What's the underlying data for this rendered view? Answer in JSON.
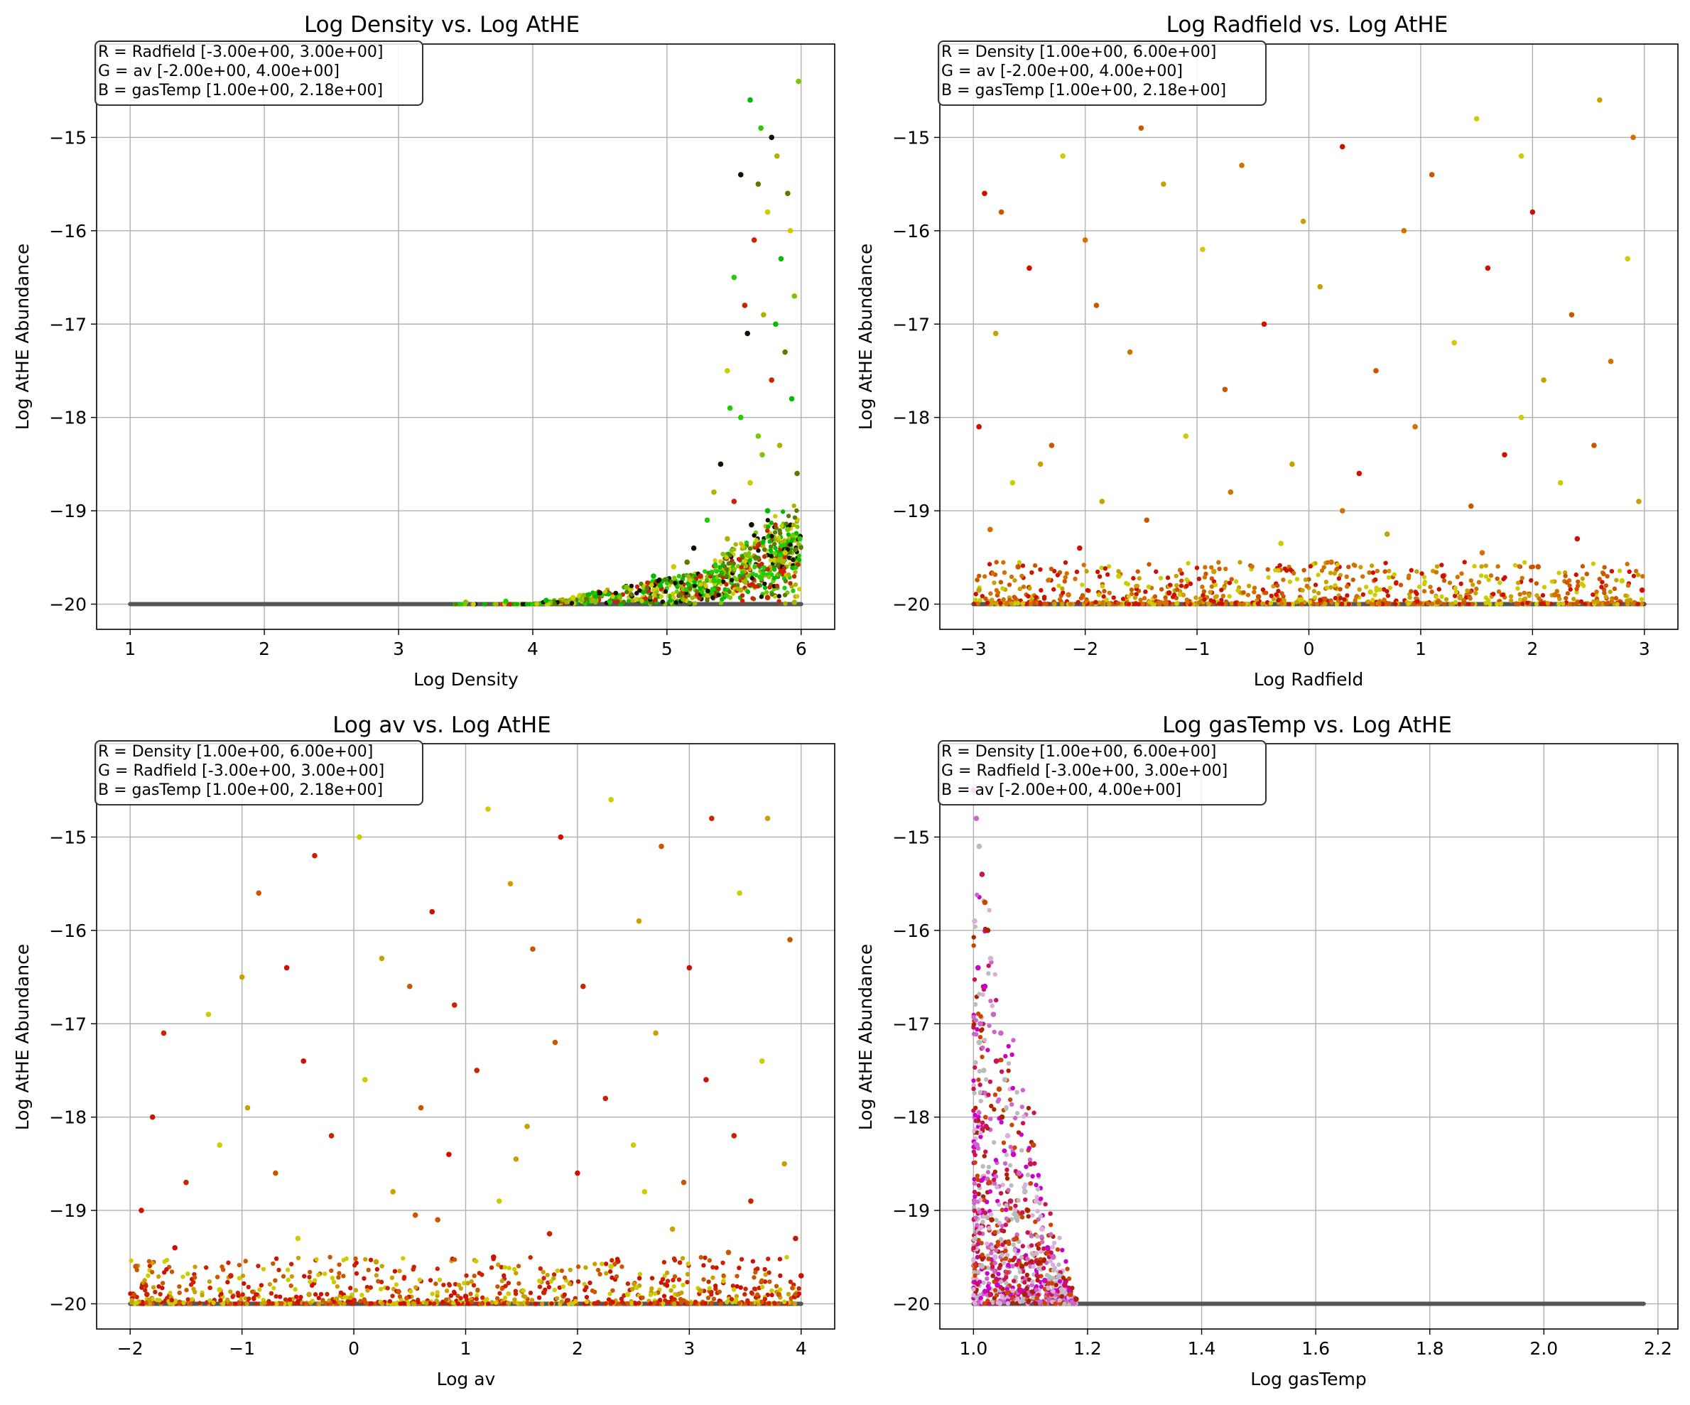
{
  "chart_data": [
    {
      "type": "scatter",
      "title": "Log Density vs. Log AtHE",
      "xlabel": "Log Density",
      "ylabel": "Log AtHE Abundance",
      "xlim": [
        0.75,
        6.25
      ],
      "ylim": [
        -20.27,
        -14.0
      ],
      "xticks": [
        1,
        2,
        3,
        4,
        5,
        6
      ],
      "xtick_labels": [
        "1",
        "2",
        "3",
        "4",
        "5",
        "6"
      ],
      "yticks": [
        -20,
        -19,
        -18,
        -17,
        -16,
        -15
      ],
      "ytick_labels": [
        "−20",
        "−19",
        "−18",
        "−17",
        "−16",
        "−15"
      ],
      "grid": true,
      "legend_position": "top-left",
      "legend": [
        "R = Radfield [-3.00e+00, 3.00e+00]",
        "G = av [-2.00e+00, 4.00e+00]",
        "B = gasTemp [1.00e+00, 2.18e+00]"
      ],
      "baseline_color": "#555555",
      "colors": [
        "#00bb00",
        "#22cc00",
        "#7ac800",
        "#b0b000",
        "#111100",
        "#5a7a00",
        "#cccc00",
        "#cc2200"
      ],
      "points": [
        [
          5.62,
          -14.6
        ],
        [
          5.7,
          -14.9
        ],
        [
          5.98,
          -14.4
        ],
        [
          5.82,
          -15.2
        ],
        [
          5.55,
          -15.4
        ],
        [
          5.9,
          -15.6
        ],
        [
          5.75,
          -15.8
        ],
        [
          5.65,
          -16.1
        ],
        [
          5.85,
          -16.3
        ],
        [
          5.5,
          -16.5
        ],
        [
          5.95,
          -16.7
        ],
        [
          5.72,
          -16.9
        ],
        [
          5.6,
          -17.1
        ],
        [
          5.88,
          -17.3
        ],
        [
          5.45,
          -17.5
        ],
        [
          5.78,
          -17.6
        ],
        [
          5.93,
          -17.8
        ],
        [
          5.55,
          -18.0
        ],
        [
          5.68,
          -18.2
        ],
        [
          5.84,
          -18.3
        ],
        [
          5.4,
          -18.5
        ],
        [
          5.97,
          -18.6
        ],
        [
          5.62,
          -18.7
        ],
        [
          5.5,
          -18.9
        ],
        [
          5.75,
          -19.0
        ],
        [
          5.3,
          -19.1
        ],
        [
          5.9,
          -19.2
        ],
        [
          5.45,
          -19.3
        ],
        [
          5.2,
          -19.4
        ],
        [
          5.66,
          -19.5
        ],
        [
          5.05,
          -19.6
        ],
        [
          5.85,
          -19.65
        ],
        [
          4.9,
          -19.7
        ],
        [
          5.35,
          -19.75
        ],
        [
          4.7,
          -19.82
        ],
        [
          5.55,
          -19.85
        ],
        [
          4.5,
          -19.88
        ],
        [
          5.1,
          -19.9
        ],
        [
          4.3,
          -19.93
        ],
        [
          5.75,
          -19.93
        ],
        [
          4.1,
          -19.96
        ],
        [
          3.8,
          -19.97
        ],
        [
          3.5,
          -19.98
        ],
        [
          5.95,
          -19.98
        ],
        [
          5.78,
          -15.0
        ],
        [
          5.68,
          -15.5
        ],
        [
          5.92,
          -16.0
        ],
        [
          5.58,
          -16.8
        ],
        [
          5.81,
          -17.0
        ],
        [
          5.47,
          -17.9
        ],
        [
          5.71,
          -18.4
        ],
        [
          5.35,
          -18.8
        ],
        [
          5.63,
          -19.15
        ],
        [
          5.15,
          -19.55
        ],
        [
          5.88,
          -19.45
        ],
        [
          5.25,
          -19.7
        ],
        [
          4.95,
          -19.8
        ],
        [
          5.99,
          -19.3
        ]
      ]
    },
    {
      "type": "scatter",
      "title": "Log Radfield vs. Log AtHE",
      "xlabel": "Log Radfield",
      "ylabel": "Log AtHE Abundance",
      "xlim": [
        -3.3,
        3.3
      ],
      "ylim": [
        -20.27,
        -14.0
      ],
      "xticks": [
        -3,
        -2,
        -1,
        0,
        1,
        2,
        3
      ],
      "xtick_labels": [
        "−3",
        "−2",
        "−1",
        "0",
        "1",
        "2",
        "3"
      ],
      "yticks": [
        -20,
        -19,
        -18,
        -17,
        -16,
        -15
      ],
      "ytick_labels": [
        "−20",
        "−19",
        "−18",
        "−17",
        "−16",
        "−15"
      ],
      "grid": true,
      "legend_position": "top-left",
      "legend": [
        "R = Density [1.00e+00, 6.00e+00]",
        "G = av [-2.00e+00, 4.00e+00]",
        "B = gasTemp [1.00e+00, 2.18e+00]"
      ],
      "baseline_color": "#555555",
      "colors": [
        "#cc1100",
        "#cc5500",
        "#cccc00",
        "#c8a000",
        "#d27000"
      ],
      "points": [
        [
          -2.9,
          -15.6
        ],
        [
          -2.75,
          -15.8
        ],
        [
          -2.2,
          -15.2
        ],
        [
          -1.3,
          -15.5
        ],
        [
          -0.6,
          -15.3
        ],
        [
          0.3,
          -15.1
        ],
        [
          1.1,
          -15.4
        ],
        [
          1.9,
          -15.2
        ],
        [
          2.6,
          -14.6
        ],
        [
          2.9,
          -15.0
        ],
        [
          -2.5,
          -16.4
        ],
        [
          -1.9,
          -16.8
        ],
        [
          -0.95,
          -16.2
        ],
        [
          0.1,
          -16.6
        ],
        [
          0.85,
          -16.0
        ],
        [
          1.6,
          -16.4
        ],
        [
          2.35,
          -16.9
        ],
        [
          2.85,
          -16.3
        ],
        [
          -2.8,
          -17.1
        ],
        [
          -1.6,
          -17.3
        ],
        [
          -0.4,
          -17.0
        ],
        [
          0.6,
          -17.5
        ],
        [
          1.3,
          -17.2
        ],
        [
          2.1,
          -17.6
        ],
        [
          2.7,
          -17.4
        ],
        [
          -2.95,
          -18.1
        ],
        [
          -2.3,
          -18.3
        ],
        [
          -1.1,
          -18.2
        ],
        [
          -0.15,
          -18.5
        ],
        [
          0.95,
          -18.1
        ],
        [
          1.75,
          -18.4
        ],
        [
          2.55,
          -18.3
        ],
        [
          -2.65,
          -18.7
        ],
        [
          -1.85,
          -18.9
        ],
        [
          -0.7,
          -18.8
        ],
        [
          0.45,
          -18.6
        ],
        [
          1.45,
          -18.95
        ],
        [
          2.25,
          -18.7
        ],
        [
          2.95,
          -18.9
        ],
        [
          -2.85,
          -19.2
        ],
        [
          -2.05,
          -19.4
        ],
        [
          -1.45,
          -19.1
        ],
        [
          -0.25,
          -19.35
        ],
        [
          0.7,
          -19.25
        ],
        [
          1.55,
          -19.45
        ],
        [
          2.4,
          -19.3
        ],
        [
          -2.6,
          -19.6
        ],
        [
          -1.7,
          -19.7
        ],
        [
          -0.85,
          -19.65
        ],
        [
          0.2,
          -19.55
        ],
        [
          1.2,
          -19.7
        ],
        [
          2.05,
          -19.6
        ],
        [
          2.8,
          -19.75
        ],
        [
          -2.95,
          -19.85
        ],
        [
          -2.15,
          -19.9
        ],
        [
          -1.25,
          -19.88
        ],
        [
          -0.45,
          -19.92
        ],
        [
          0.55,
          -19.87
        ],
        [
          1.35,
          -19.93
        ],
        [
          2.2,
          -19.9
        ],
        [
          2.98,
          -19.85
        ],
        [
          -1.5,
          -14.9
        ],
        [
          1.5,
          -14.8
        ],
        [
          -0.05,
          -15.9
        ],
        [
          -2.0,
          -16.1
        ],
        [
          2.0,
          -15.8
        ],
        [
          -0.75,
          -17.7
        ],
        [
          1.9,
          -18.0
        ],
        [
          -2.4,
          -18.5
        ],
        [
          0.3,
          -19.0
        ]
      ]
    },
    {
      "type": "scatter",
      "title": "Log av vs. Log AtHE",
      "xlabel": "Log av",
      "ylabel": "Log AtHE Abundance",
      "xlim": [
        -2.3,
        4.3
      ],
      "ylim": [
        -20.27,
        -14.0
      ],
      "xticks": [
        -2,
        -1,
        0,
        1,
        2,
        3,
        4
      ],
      "xtick_labels": [
        "−2",
        "−1",
        "0",
        "1",
        "2",
        "3",
        "4"
      ],
      "yticks": [
        -20,
        -19,
        -18,
        -17,
        -16,
        -15
      ],
      "ytick_labels": [
        "−20",
        "−19",
        "−18",
        "−17",
        "−16",
        "−15"
      ],
      "grid": true,
      "legend_position": "top-left",
      "legend": [
        "R = Density [1.00e+00, 6.00e+00]",
        "G = Radfield [-3.00e+00, 3.00e+00]",
        "B = gasTemp [1.00e+00, 2.18e+00]"
      ],
      "baseline_color": "#555555",
      "colors": [
        "#cc1100",
        "#cc2200",
        "#cccc00",
        "#c8a000",
        "#cc5500"
      ],
      "points": [
        [
          -1.9,
          -19.0
        ],
        [
          -1.7,
          -17.1
        ],
        [
          -1.3,
          -16.9
        ],
        [
          -1.0,
          -16.5
        ],
        [
          -0.85,
          -15.6
        ],
        [
          -0.6,
          -16.4
        ],
        [
          -0.35,
          -15.2
        ],
        [
          0.05,
          -15.0
        ],
        [
          0.25,
          -16.3
        ],
        [
          0.5,
          -16.6
        ],
        [
          0.7,
          -15.8
        ],
        [
          0.9,
          -16.8
        ],
        [
          1.2,
          -14.7
        ],
        [
          1.4,
          -15.5
        ],
        [
          1.6,
          -16.2
        ],
        [
          1.85,
          -15.0
        ],
        [
          2.05,
          -16.6
        ],
        [
          2.3,
          -14.6
        ],
        [
          2.55,
          -15.9
        ],
        [
          2.75,
          -15.1
        ],
        [
          3.0,
          -16.4
        ],
        [
          3.2,
          -14.8
        ],
        [
          3.45,
          -15.6
        ],
        [
          3.7,
          -14.8
        ],
        [
          3.9,
          -16.1
        ],
        [
          -1.8,
          -18.0
        ],
        [
          -1.5,
          -18.7
        ],
        [
          -1.2,
          -18.3
        ],
        [
          -0.95,
          -17.9
        ],
        [
          -0.7,
          -18.6
        ],
        [
          -0.45,
          -17.4
        ],
        [
          -0.2,
          -18.2
        ],
        [
          0.1,
          -17.6
        ],
        [
          0.35,
          -18.8
        ],
        [
          0.6,
          -17.9
        ],
        [
          0.85,
          -18.4
        ],
        [
          1.1,
          -17.5
        ],
        [
          1.3,
          -18.9
        ],
        [
          1.55,
          -18.1
        ],
        [
          1.8,
          -17.2
        ],
        [
          2.0,
          -18.6
        ],
        [
          2.25,
          -17.8
        ],
        [
          2.5,
          -18.3
        ],
        [
          2.7,
          -17.1
        ],
        [
          2.95,
          -18.7
        ],
        [
          3.15,
          -17.6
        ],
        [
          3.4,
          -18.2
        ],
        [
          3.65,
          -17.4
        ],
        [
          3.85,
          -18.5
        ],
        [
          -1.95,
          -19.6
        ],
        [
          -1.6,
          -19.4
        ],
        [
          -1.1,
          -19.7
        ],
        [
          -0.5,
          -19.3
        ],
        [
          0.2,
          -19.55
        ],
        [
          0.75,
          -19.1
        ],
        [
          1.25,
          -19.5
        ],
        [
          1.75,
          -19.25
        ],
        [
          2.3,
          -19.6
        ],
        [
          2.85,
          -19.2
        ],
        [
          3.35,
          -19.45
        ],
        [
          3.95,
          -19.3
        ],
        [
          -1.85,
          -19.9
        ],
        [
          -1.2,
          -19.85
        ],
        [
          -0.4,
          -19.9
        ],
        [
          0.4,
          -19.87
        ],
        [
          1.0,
          -19.92
        ],
        [
          1.7,
          -19.88
        ],
        [
          2.45,
          -19.9
        ],
        [
          3.1,
          -19.86
        ],
        [
          3.8,
          -19.9
        ],
        [
          4.0,
          -19.7
        ],
        [
          3.55,
          -18.9
        ],
        [
          2.6,
          -18.8
        ],
        [
          1.45,
          -18.45
        ],
        [
          0.55,
          -19.05
        ]
      ]
    },
    {
      "type": "scatter",
      "title": "Log gasTemp vs. Log AtHE",
      "xlabel": "Log gasTemp",
      "ylabel": "Log AtHE Abundance",
      "xlim": [
        0.941,
        2.235
      ],
      "ylim": [
        -20.27,
        -14.0
      ],
      "xticks": [
        1.0,
        1.2,
        1.4,
        1.6,
        1.8,
        2.0,
        2.2
      ],
      "xtick_labels": [
        "1.0",
        "1.2",
        "1.4",
        "1.6",
        "1.8",
        "2.0",
        "2.2"
      ],
      "yticks": [
        -20,
        -19,
        -18,
        -17,
        -16,
        -15
      ],
      "ytick_labels": [
        "−20",
        "−19",
        "−18",
        "−17",
        "−16",
        "−15"
      ],
      "grid": true,
      "legend_position": "top-left",
      "legend": [
        "R = Density [1.00e+00, 6.00e+00]",
        "G = Radfield [-3.00e+00, 3.00e+00]",
        "B = av [-2.00e+00, 4.00e+00]"
      ],
      "baseline_color": "#555555",
      "colors": [
        "#cc00cc",
        "#cc66cc",
        "#bbbbbb",
        "#cc1155",
        "#cc4400",
        "#aa2200",
        "#d8b0d8"
      ],
      "points": [
        [
          1.0,
          -14.5
        ],
        [
          1.005,
          -14.8
        ],
        [
          1.01,
          -15.1
        ],
        [
          1.015,
          -15.4
        ],
        [
          1.02,
          -15.7
        ],
        [
          1.025,
          -16.0
        ],
        [
          1.03,
          -16.3
        ],
        [
          1.02,
          -16.6
        ],
        [
          1.035,
          -16.9
        ],
        [
          1.01,
          -17.2
        ],
        [
          1.04,
          -17.4
        ],
        [
          1.045,
          -17.7
        ],
        [
          1.05,
          -18.0
        ],
        [
          1.06,
          -18.2
        ],
        [
          1.07,
          -18.4
        ],
        [
          1.08,
          -18.6
        ],
        [
          1.09,
          -18.8
        ],
        [
          1.1,
          -18.5
        ],
        [
          1.105,
          -18.3
        ],
        [
          1.095,
          -19.0
        ],
        [
          1.12,
          -19.2
        ],
        [
          1.13,
          -19.4
        ],
        [
          1.14,
          -19.5
        ],
        [
          1.15,
          -19.7
        ],
        [
          1.16,
          -19.8
        ],
        [
          1.17,
          -19.9
        ],
        [
          1.18,
          -19.95
        ],
        [
          1.002,
          -15.9
        ],
        [
          1.008,
          -16.4
        ],
        [
          1.012,
          -17.0
        ],
        [
          1.018,
          -17.5
        ],
        [
          1.022,
          -18.1
        ],
        [
          1.028,
          -18.7
        ],
        [
          1.032,
          -19.1
        ],
        [
          1.038,
          -19.5
        ],
        [
          1.042,
          -19.8
        ],
        [
          1.048,
          -17.1
        ],
        [
          1.055,
          -17.6
        ],
        [
          1.065,
          -18.9
        ],
        [
          1.075,
          -19.3
        ],
        [
          1.085,
          -19.6
        ],
        [
          1.11,
          -18.9
        ],
        [
          1.125,
          -19.75
        ],
        [
          1.006,
          -18.3
        ],
        [
          1.015,
          -19.6
        ],
        [
          1.03,
          -19.9
        ],
        [
          1.06,
          -19.88
        ],
        [
          1.09,
          -19.9
        ]
      ]
    }
  ]
}
